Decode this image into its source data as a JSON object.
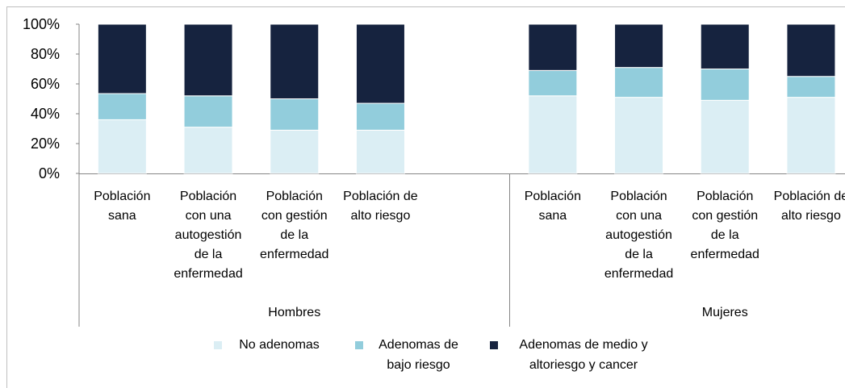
{
  "chart_data": {
    "type": "stacked_bar",
    "categories": [
      "Población sana",
      "Población con una autogestión de la enfermedad",
      "Población con gestión de la enfermedad",
      "Población de alto riesgo",
      "Población sana",
      "Población con una autogestión de la enfermedad",
      "Población con gestión de la enfermedad",
      "Población de alto riesgo"
    ],
    "groups": [
      {
        "name": "Hombres",
        "start": 0,
        "count": 4
      },
      {
        "name": "Mujeres",
        "start": 4,
        "count": 4
      }
    ],
    "series": [
      {
        "name": "No adenomas",
        "color": "#dbeef4",
        "values": [
          36,
          31,
          29,
          29,
          52,
          51,
          49,
          51
        ]
      },
      {
        "name": "Adenomas de bajo riesgo",
        "color": "#92cddc",
        "values": [
          17.5,
          21,
          21,
          18,
          17,
          20,
          21,
          14
        ]
      },
      {
        "name": "Adenomas de medio y altoriesgo y cancer",
        "color": "#16233f",
        "values": [
          46.5,
          48,
          50,
          53,
          31,
          29,
          30,
          35
        ]
      }
    ],
    "ylim": [
      0,
      100
    ],
    "yticks": [
      {
        "value": 0,
        "label": "0%"
      },
      {
        "value": 20,
        "label": "20%"
      },
      {
        "value": 40,
        "label": "40%"
      },
      {
        "value": 60,
        "label": "60%"
      },
      {
        "value": 80,
        "label": "80%"
      },
      {
        "value": 100,
        "label": "100%"
      }
    ],
    "legend": "bottom"
  }
}
